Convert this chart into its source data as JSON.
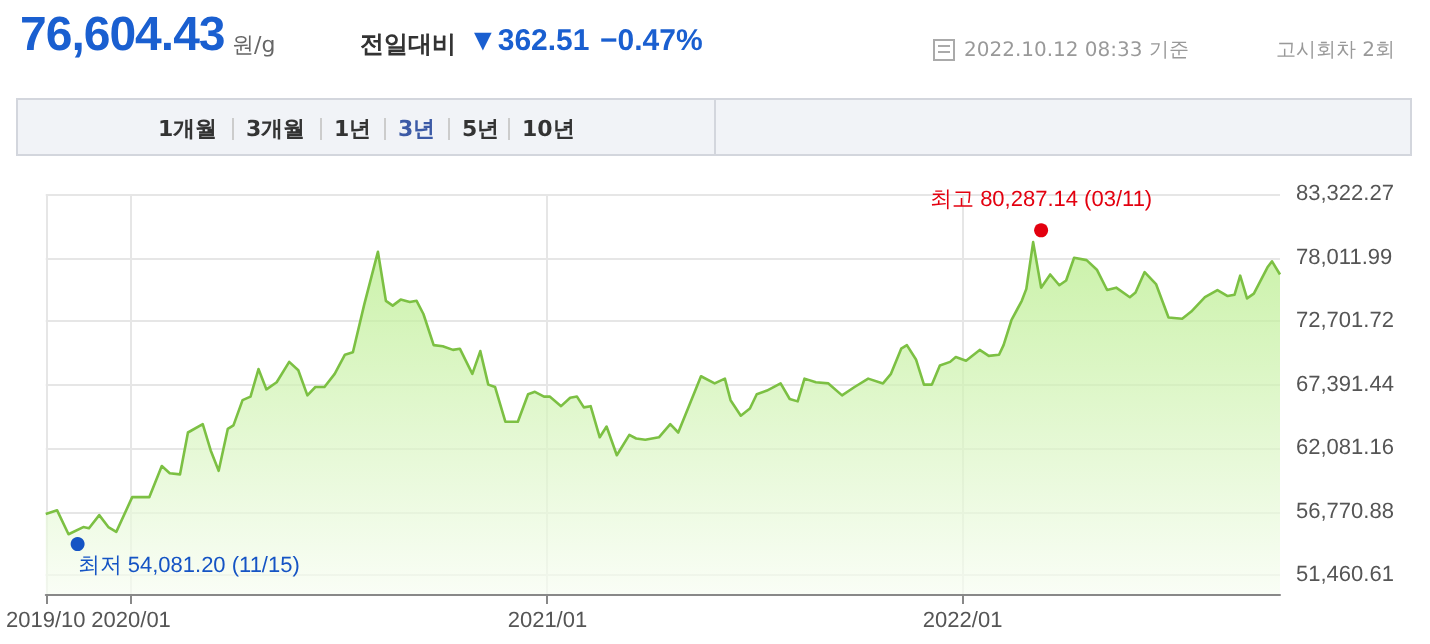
{
  "chart_data": {
    "type": "area",
    "title": "76,604.43",
    "annotations": [
      "원/g",
      "전일대비",
      "▼362.51",
      "−0.47%",
      "2022.10.12 08:33 기준",
      "고시회차 2회",
      "1개월",
      "3개월",
      "1년",
      "3년",
      "5년",
      "10년",
      {
        "text": "최저 54,081.20 (11/15)",
        "x": "2019-11-15",
        "y": 54081.2
      },
      {
        "text": "최고 80,287.14 (03/11)",
        "x": "2022-03-11",
        "y": 80287.14
      }
    ],
    "x": [
      "2019-10-18",
      "2019-10-28",
      "2019-11-07",
      "2019-11-20",
      "2019-11-25",
      "2019-12-04",
      "2019-12-12",
      "2019-12-19",
      "2020-01-02",
      "2020-01-17",
      "2020-01-28",
      "2020-02-04",
      "2020-02-13",
      "2020-02-20",
      "2020-03-04",
      "2020-03-11",
      "2020-03-18",
      "2020-03-26",
      "2020-03-31",
      "2020-04-08",
      "2020-04-15",
      "2020-04-22",
      "2020-04-29",
      "2020-05-08",
      "2020-05-19",
      "2020-05-27",
      "2020-06-04",
      "2020-06-11",
      "2020-06-19",
      "2020-06-28",
      "2020-07-07",
      "2020-07-14",
      "2020-07-24",
      "2020-08-05",
      "2020-08-12",
      "2020-08-18",
      "2020-08-25",
      "2020-09-02",
      "2020-09-08",
      "2020-09-14",
      "2020-09-23",
      "2020-10-01",
      "2020-10-10",
      "2020-10-16",
      "2020-10-27",
      "2020-11-03",
      "2020-11-10",
      "2020-11-16",
      "2020-11-25",
      "2020-12-06",
      "2020-12-15",
      "2020-12-21",
      "2020-12-29",
      "2021-01-03",
      "2021-01-13",
      "2021-01-21",
      "2021-01-27",
      "2021-02-02",
      "2021-02-08",
      "2021-02-16",
      "2021-02-22",
      "2021-03-03",
      "2021-03-14",
      "2021-03-20",
      "2021-03-28",
      "2021-04-09",
      "2021-04-19",
      "2021-04-26",
      "2021-05-05",
      "2021-05-16",
      "2021-05-28",
      "2021-06-06",
      "2021-06-11",
      "2021-06-20",
      "2021-06-28",
      "2021-07-04",
      "2021-07-13",
      "2021-07-25",
      "2021-08-02",
      "2021-08-09",
      "2021-08-15",
      "2021-08-25",
      "2021-09-05",
      "2021-09-17",
      "2021-09-28",
      "2021-10-10",
      "2021-10-23",
      "2021-10-30",
      "2021-11-08",
      "2021-11-13",
      "2021-11-21",
      "2021-11-28",
      "2021-12-05",
      "2021-12-12",
      "2021-12-21",
      "2021-12-26",
      "2022-01-04",
      "2022-01-16",
      "2022-01-24",
      "2022-02-02",
      "2022-02-06",
      "2022-02-13",
      "2022-02-22",
      "2022-02-26",
      "2022-03-04",
      "2022-03-11",
      "2022-03-19",
      "2022-03-27",
      "2022-04-02",
      "2022-04-09",
      "2022-04-20",
      "2022-04-29",
      "2022-05-08",
      "2022-05-16",
      "2022-05-28",
      "2022-06-02",
      "2022-06-10",
      "2022-06-20",
      "2022-07-01",
      "2022-07-13",
      "2022-07-21",
      "2022-08-02",
      "2022-08-13",
      "2022-08-22",
      "2022-08-28",
      "2022-09-02",
      "2022-09-08",
      "2022-09-14",
      "2022-09-26",
      "2022-09-30",
      "2022-10-07"
    ],
    "series": [
      {
        "color": "#7cc043",
        "values": [
          56600,
          56900,
          54900,
          55500,
          55400,
          56500,
          55500,
          55100,
          58000,
          58000,
          60600,
          60000,
          59900,
          63400,
          64100,
          61900,
          60200,
          63700,
          64000,
          66100,
          66400,
          68700,
          67000,
          67600,
          69300,
          68600,
          66500,
          67200,
          67200,
          68300,
          69900,
          70100,
          74100,
          78500,
          74400,
          74000,
          74500,
          74300,
          74400,
          73300,
          70700,
          70600,
          70300,
          70400,
          68300,
          70200,
          67400,
          67200,
          64300,
          64300,
          66600,
          66800,
          66400,
          66400,
          65600,
          66300,
          66400,
          65500,
          65600,
          63000,
          63900,
          61500,
          63200,
          62900,
          62800,
          63000,
          64100,
          63400,
          65500,
          68100,
          67500,
          67900,
          66100,
          64800,
          65400,
          66600,
          66900,
          67500,
          66200,
          66000,
          67900,
          67600,
          67500,
          66500,
          67200,
          67900,
          67500,
          68300,
          70400,
          70700,
          69500,
          67400,
          67400,
          69000,
          69300,
          69700,
          69400,
          70300,
          69800,
          69900,
          70700,
          72800,
          74400,
          75400,
          79300,
          75500,
          76600,
          75700,
          76100,
          78000,
          77800,
          77000,
          75300,
          75500,
          74700,
          75100,
          76800,
          75800,
          73000,
          72900,
          73500,
          74700,
          75300,
          74800,
          74900,
          76500,
          74600,
          75000,
          77200,
          77700,
          76600
        ]
      }
    ],
    "xlim": [
      "2019-10-18",
      "2022-10-07"
    ],
    "xticks": [
      {
        "value": "2019-10-18",
        "label": "2019/10"
      },
      {
        "value": "2020-01-01",
        "label": "2020/01"
      },
      {
        "value": "2021-01-01",
        "label": "2021/01"
      },
      {
        "value": "2022-01-01",
        "label": "2022/01"
      }
    ],
    "ylim": [
      49910,
      83322.27
    ],
    "yticks": [
      {
        "value": 51460.61,
        "label": "51,460.61"
      },
      {
        "value": 56770.88,
        "label": "56,770.88"
      },
      {
        "value": 62081.16,
        "label": "62,081.16"
      },
      {
        "value": 67391.44,
        "label": "67,391.44"
      },
      {
        "value": 72701.72,
        "label": "72,701.72"
      },
      {
        "value": 78011.99,
        "label": "78,011.99"
      },
      {
        "value": 83322.27,
        "label": "83,322.27"
      }
    ],
    "grid": true,
    "marker": "none"
  }
}
